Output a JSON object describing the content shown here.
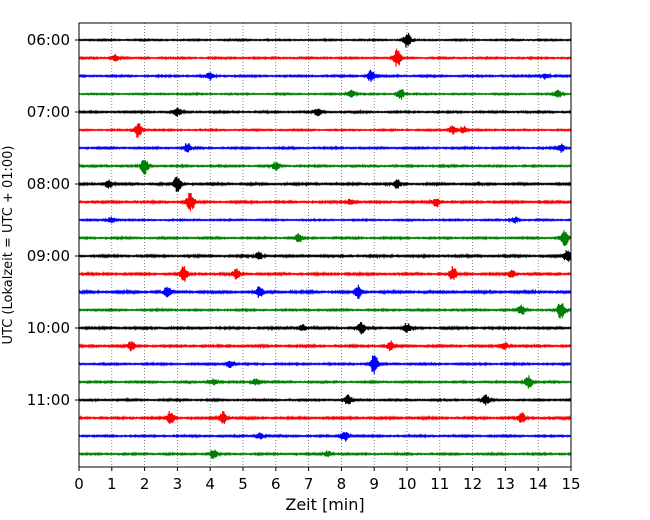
{
  "chart_data": {
    "type": "line",
    "xlabel": "Zeit  [min]",
    "ylabel": "UTC (Lokalzeit = UTC + 01:00)",
    "xlim": [
      0,
      15
    ],
    "x_ticks": [
      0,
      1,
      2,
      3,
      4,
      5,
      6,
      7,
      8,
      9,
      10,
      11,
      12,
      13,
      14,
      15
    ],
    "y_tick_labels": [
      "06:00",
      "07:00",
      "08:00",
      "09:00",
      "10:00",
      "11:00"
    ],
    "grid": "vertical dotted at each minute",
    "series_colors": [
      "#000000",
      "#ff0000",
      "#0000ff",
      "#008000"
    ],
    "traces": [
      {
        "start": "06:00",
        "color": "#000000",
        "base": 0.6,
        "events": [
          [
            10.0,
            2.2
          ]
        ]
      },
      {
        "start": "06:15",
        "color": "#ff0000",
        "base": 0.65,
        "events": [
          [
            1.1,
            1.2
          ],
          [
            9.7,
            2.5
          ]
        ]
      },
      {
        "start": "06:30",
        "color": "#0000ff",
        "base": 0.7,
        "events": [
          [
            4.0,
            1.2
          ],
          [
            8.9,
            2.0
          ],
          [
            14.2,
            1.2
          ]
        ]
      },
      {
        "start": "06:45",
        "color": "#008000",
        "base": 0.6,
        "events": [
          [
            8.3,
            1.6
          ],
          [
            9.8,
            2.0
          ],
          [
            14.6,
            1.2
          ]
        ]
      },
      {
        "start": "07:00",
        "color": "#000000",
        "base": 0.7,
        "events": [
          [
            3.0,
            1.2
          ],
          [
            7.3,
            1.2
          ]
        ]
      },
      {
        "start": "07:15",
        "color": "#ff0000",
        "base": 0.6,
        "events": [
          [
            1.8,
            2.8
          ],
          [
            11.4,
            1.6
          ],
          [
            11.7,
            1.4
          ]
        ]
      },
      {
        "start": "07:30",
        "color": "#0000ff",
        "base": 0.7,
        "events": [
          [
            3.3,
            1.4
          ],
          [
            14.7,
            1.2
          ]
        ]
      },
      {
        "start": "07:45",
        "color": "#008000",
        "base": 0.7,
        "events": [
          [
            2.0,
            2.6
          ],
          [
            6.0,
            1.2
          ]
        ]
      },
      {
        "start": "08:00",
        "color": "#000000",
        "base": 0.8,
        "events": [
          [
            3.0,
            2.4
          ],
          [
            0.9,
            1.4
          ],
          [
            9.7,
            1.3
          ]
        ]
      },
      {
        "start": "08:15",
        "color": "#ff0000",
        "base": 0.8,
        "events": [
          [
            3.4,
            2.8
          ],
          [
            10.9,
            1.6
          ],
          [
            8.3,
            1.2
          ]
        ]
      },
      {
        "start": "08:30",
        "color": "#0000ff",
        "base": 0.6,
        "events": [
          [
            1.0,
            1.2
          ],
          [
            13.3,
            1.2
          ]
        ]
      },
      {
        "start": "08:45",
        "color": "#008000",
        "base": 0.7,
        "events": [
          [
            14.8,
            2.4
          ],
          [
            6.7,
            1.2
          ]
        ]
      },
      {
        "start": "09:00",
        "color": "#000000",
        "base": 0.8,
        "events": [
          [
            14.9,
            2.0
          ],
          [
            5.5,
            1.3
          ]
        ]
      },
      {
        "start": "09:15",
        "color": "#ff0000",
        "base": 0.8,
        "events": [
          [
            3.2,
            2.2
          ],
          [
            11.4,
            2.0
          ],
          [
            13.2,
            1.4
          ],
          [
            4.8,
            1.4
          ]
        ]
      },
      {
        "start": "09:30",
        "color": "#0000ff",
        "base": 0.9,
        "events": [
          [
            8.5,
            2.0
          ],
          [
            2.7,
            1.5
          ],
          [
            5.5,
            1.4
          ]
        ]
      },
      {
        "start": "09:45",
        "color": "#008000",
        "base": 0.7,
        "events": [
          [
            14.7,
            2.6
          ],
          [
            13.5,
            1.4
          ]
        ]
      },
      {
        "start": "10:00",
        "color": "#000000",
        "base": 0.8,
        "events": [
          [
            8.6,
            1.6
          ],
          [
            6.8,
            1.3
          ],
          [
            10.0,
            1.3
          ]
        ]
      },
      {
        "start": "10:15",
        "color": "#ff0000",
        "base": 0.8,
        "events": [
          [
            1.6,
            1.4
          ],
          [
            9.5,
            1.3
          ],
          [
            13.0,
            1.3
          ]
        ]
      },
      {
        "start": "10:30",
        "color": "#0000ff",
        "base": 0.7,
        "events": [
          [
            9.0,
            3.0
          ],
          [
            4.6,
            1.4
          ]
        ]
      },
      {
        "start": "10:45",
        "color": "#008000",
        "base": 0.7,
        "events": [
          [
            13.7,
            2.4
          ],
          [
            4.1,
            1.4
          ],
          [
            5.4,
            1.3
          ]
        ]
      },
      {
        "start": "11:00",
        "color": "#000000",
        "base": 0.7,
        "events": [
          [
            8.2,
            1.5
          ],
          [
            12.4,
            1.3
          ]
        ]
      },
      {
        "start": "11:15",
        "color": "#ff0000",
        "base": 0.8,
        "events": [
          [
            2.8,
            2.2
          ],
          [
            4.4,
            2.4
          ],
          [
            13.5,
            1.4
          ]
        ]
      },
      {
        "start": "11:30",
        "color": "#0000ff",
        "base": 0.7,
        "events": [
          [
            8.1,
            2.2
          ],
          [
            5.5,
            1.4
          ]
        ]
      },
      {
        "start": "11:45",
        "color": "#008000",
        "base": 0.7,
        "events": [
          [
            4.1,
            1.3
          ],
          [
            7.6,
            1.2
          ]
        ]
      }
    ]
  }
}
